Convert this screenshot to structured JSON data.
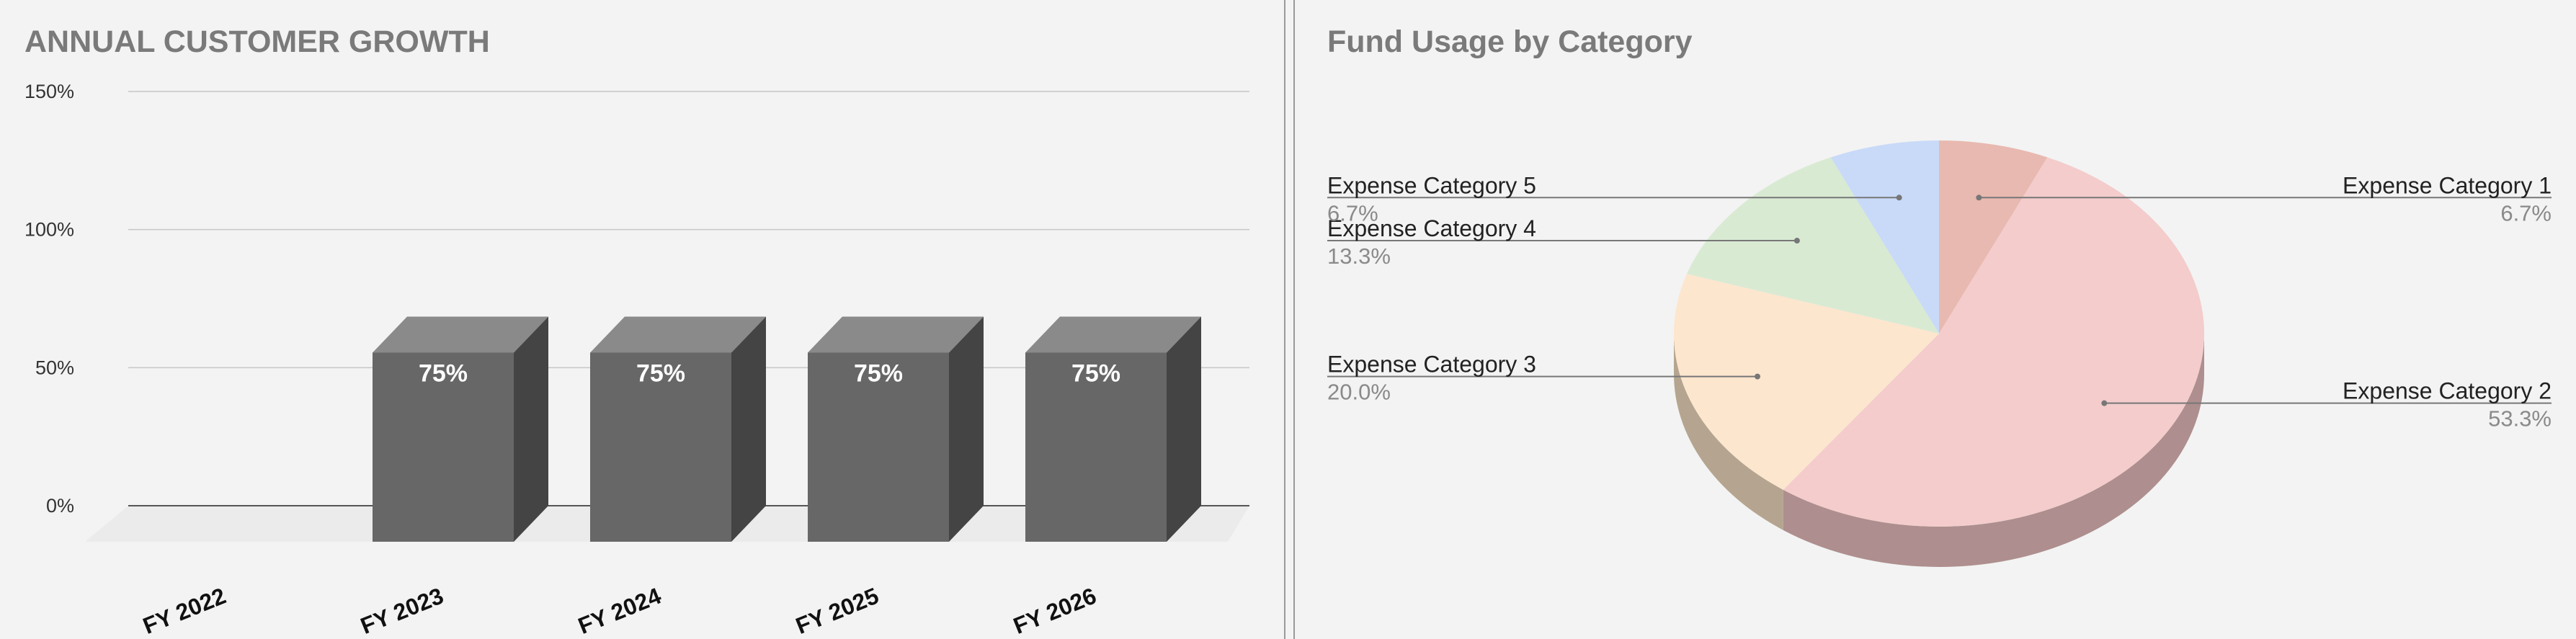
{
  "charts": {
    "bar": {
      "type": "bar",
      "title": "ANNUAL CUSTOMER GROWTH",
      "categories": [
        "FY 2022",
        "FY 2023",
        "FY 2024",
        "FY 2025",
        "FY 2026"
      ],
      "values": [
        null,
        75,
        75,
        75,
        75
      ],
      "data_labels": [
        "",
        "75%",
        "75%",
        "75%",
        "75%"
      ],
      "y_ticks": [
        0,
        50,
        100,
        150
      ],
      "y_tick_labels": [
        "0%",
        "50%",
        "100%",
        "150%"
      ],
      "ylim": [
        0,
        150
      ],
      "grid": true,
      "style": "3d",
      "colors": {
        "front": "#676767",
        "top": "#8a8a8a",
        "side": "#444444",
        "grid": "#c6c6c6",
        "axis": "#555555"
      }
    },
    "pie": {
      "type": "pie",
      "title": "Fund Usage by Category",
      "style": "3d",
      "slices": [
        {
          "name": "Expense Category 1",
          "value": 6.7,
          "label": "6.7%",
          "color": "#e8b9b0",
          "side_color": "#b3968f"
        },
        {
          "name": "Expense Category 2",
          "value": 53.3,
          "label": "53.3%",
          "color": "#f4cccc",
          "side_color": "#ae8e8e"
        },
        {
          "name": "Expense Category 3",
          "value": 20.0,
          "label": "20.0%",
          "color": "#fde6ce",
          "side_color": "#b5a590"
        },
        {
          "name": "Expense Category 4",
          "value": 13.3,
          "label": "13.3%",
          "color": "#d9ead3",
          "side_color": "#9aab93"
        },
        {
          "name": "Expense Category 5",
          "value": 6.7,
          "label": "6.7%",
          "color": "#c9daf8",
          "side_color": "#8f9db5"
        }
      ]
    }
  }
}
